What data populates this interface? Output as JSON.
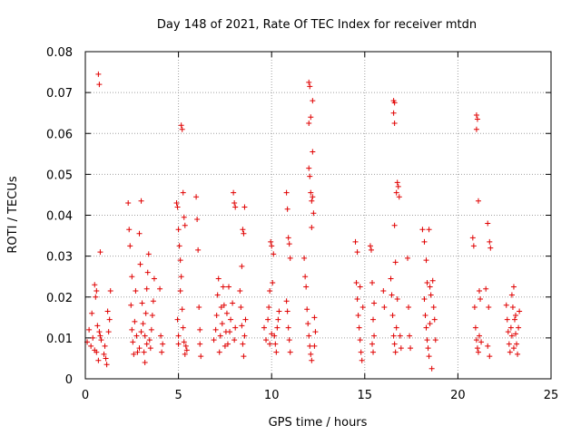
{
  "chart_data": {
    "type": "scatter",
    "title": "Day 148 of 2021, Rate Of TEC Index for receiver mtdn",
    "xlabel": "GPS time / hours",
    "ylabel": "ROTI / TECUs",
    "xlim": [
      0,
      25
    ],
    "ylim": [
      0,
      0.08
    ],
    "x_ticks": [
      "0",
      "5",
      "10",
      "15",
      "20",
      "25"
    ],
    "y_ticks": [
      "0",
      "0.01",
      "0.02",
      "0.03",
      "0.04",
      "0.05",
      "0.06",
      "0.07",
      "0.08"
    ],
    "grid": true,
    "legend": "none",
    "marker": "+",
    "color": "#e00000",
    "series": [
      {
        "values": [
          [
            0.1,
            0.009
          ],
          [
            0.2,
            0.012
          ],
          [
            0.3,
            0.008
          ],
          [
            0.35,
            0.016
          ],
          [
            0.4,
            0.01
          ],
          [
            0.5,
            0.007
          ],
          [
            0.55,
            0.02
          ],
          [
            0.6,
            0.0065
          ],
          [
            0.65,
            0.013
          ],
          [
            0.7,
            0.0045
          ],
          [
            0.75,
            0.0115
          ],
          [
            0.8,
            0.0105
          ],
          [
            0.85,
            0.0095
          ],
          [
            0.7,
            0.0745
          ],
          [
            0.75,
            0.072
          ],
          [
            0.8,
            0.031
          ],
          [
            0.5,
            0.023
          ],
          [
            0.6,
            0.0215
          ],
          [
            1.0,
            0.006
          ],
          [
            1.05,
            0.008
          ],
          [
            1.1,
            0.005
          ],
          [
            1.15,
            0.0035
          ],
          [
            1.2,
            0.0165
          ],
          [
            1.25,
            0.0115
          ],
          [
            1.3,
            0.0145
          ],
          [
            1.35,
            0.0215
          ],
          [
            2.3,
            0.043
          ],
          [
            2.35,
            0.0365
          ],
          [
            2.4,
            0.0325
          ],
          [
            2.5,
            0.025
          ],
          [
            2.45,
            0.018
          ],
          [
            2.5,
            0.012
          ],
          [
            2.55,
            0.009
          ],
          [
            2.6,
            0.006
          ],
          [
            2.65,
            0.014
          ],
          [
            2.7,
            0.0215
          ],
          [
            2.75,
            0.0105
          ],
          [
            2.8,
            0.0065
          ],
          [
            2.9,
            0.0355
          ],
          [
            2.95,
            0.028
          ],
          [
            3.0,
            0.0435
          ],
          [
            3.05,
            0.0185
          ],
          [
            3.1,
            0.0135
          ],
          [
            3.15,
            0.0065
          ],
          [
            3.2,
            0.004
          ],
          [
            3.25,
            0.016
          ],
          [
            3.3,
            0.022
          ],
          [
            3.35,
            0.026
          ],
          [
            3.4,
            0.0305
          ],
          [
            3.45,
            0.0095
          ],
          [
            3.5,
            0.0075
          ],
          [
            3.55,
            0.012
          ],
          [
            3.6,
            0.0155
          ],
          [
            3.65,
            0.019
          ],
          [
            3.7,
            0.0245
          ],
          [
            3.3,
            0.0085
          ],
          [
            3.2,
            0.0105
          ],
          [
            3.0,
            0.0115
          ],
          [
            2.9,
            0.0075
          ],
          [
            4.0,
            0.022
          ],
          [
            4.05,
            0.0105
          ],
          [
            4.1,
            0.0065
          ],
          [
            4.15,
            0.0085
          ],
          [
            4.9,
            0.043
          ],
          [
            4.95,
            0.042
          ],
          [
            5.0,
            0.0365
          ],
          [
            5.05,
            0.0325
          ],
          [
            5.1,
            0.029
          ],
          [
            5.15,
            0.025
          ],
          [
            5.2,
            0.017
          ],
          [
            5.25,
            0.0125
          ],
          [
            5.3,
            0.009
          ],
          [
            5.35,
            0.006
          ],
          [
            5.0,
            0.0105
          ],
          [
            4.95,
            0.0145
          ],
          [
            5.1,
            0.0215
          ],
          [
            5.15,
            0.062
          ],
          [
            5.2,
            0.061
          ],
          [
            5.25,
            0.0455
          ],
          [
            5.3,
            0.0395
          ],
          [
            5.35,
            0.0375
          ],
          [
            5.4,
            0.008
          ],
          [
            5.45,
            0.007
          ],
          [
            5.0,
            0.0085
          ],
          [
            5.95,
            0.0445
          ],
          [
            6.0,
            0.039
          ],
          [
            6.05,
            0.0315
          ],
          [
            6.1,
            0.0175
          ],
          [
            6.15,
            0.0085
          ],
          [
            6.2,
            0.0055
          ],
          [
            6.15,
            0.012
          ],
          [
            6.9,
            0.0095
          ],
          [
            7.0,
            0.012
          ],
          [
            7.05,
            0.0155
          ],
          [
            7.1,
            0.0205
          ],
          [
            7.15,
            0.0245
          ],
          [
            7.2,
            0.0065
          ],
          [
            7.25,
            0.0105
          ],
          [
            7.3,
            0.0175
          ],
          [
            7.35,
            0.0135
          ],
          [
            7.4,
            0.0225
          ],
          [
            7.45,
            0.018
          ],
          [
            7.5,
            0.008
          ],
          [
            7.55,
            0.0115
          ],
          [
            7.6,
            0.016
          ],
          [
            7.65,
            0.0085
          ],
          [
            7.7,
            0.0225
          ],
          [
            7.75,
            0.0115
          ],
          [
            7.8,
            0.0145
          ],
          [
            7.9,
            0.0185
          ],
          [
            8.0,
            0.0095
          ],
          [
            8.05,
            0.0125
          ],
          [
            7.95,
            0.0455
          ],
          [
            8.0,
            0.043
          ],
          [
            8.05,
            0.042
          ],
          [
            8.3,
            0.0215
          ],
          [
            8.35,
            0.0175
          ],
          [
            8.4,
            0.013
          ],
          [
            8.45,
            0.0085
          ],
          [
            8.5,
            0.0055
          ],
          [
            8.55,
            0.0105
          ],
          [
            8.45,
            0.0365
          ],
          [
            8.5,
            0.0355
          ],
          [
            8.55,
            0.042
          ],
          [
            8.4,
            0.0275
          ],
          [
            8.6,
            0.0145
          ],
          [
            9.6,
            0.0125
          ],
          [
            9.7,
            0.0095
          ],
          [
            9.8,
            0.0145
          ],
          [
            9.85,
            0.0175
          ],
          [
            9.9,
            0.0215
          ],
          [
            9.95,
            0.0335
          ],
          [
            10.0,
            0.0325
          ],
          [
            10.05,
            0.0235
          ],
          [
            10.1,
            0.0305
          ],
          [
            10.15,
            0.0105
          ],
          [
            10.2,
            0.0085
          ],
          [
            10.25,
            0.0065
          ],
          [
            10.3,
            0.0125
          ],
          [
            10.35,
            0.0145
          ],
          [
            10.4,
            0.0165
          ],
          [
            10.0,
            0.011
          ],
          [
            9.9,
            0.0085
          ],
          [
            10.8,
            0.0455
          ],
          [
            10.85,
            0.0415
          ],
          [
            10.9,
            0.0345
          ],
          [
            10.95,
            0.033
          ],
          [
            11.0,
            0.0295
          ],
          [
            10.8,
            0.019
          ],
          [
            10.85,
            0.0165
          ],
          [
            10.9,
            0.0125
          ],
          [
            10.95,
            0.0095
          ],
          [
            11.0,
            0.0065
          ],
          [
            11.75,
            0.0295
          ],
          [
            11.8,
            0.025
          ],
          [
            11.85,
            0.0225
          ],
          [
            11.9,
            0.017
          ],
          [
            11.95,
            0.0135
          ],
          [
            12.0,
            0.0105
          ],
          [
            12.05,
            0.008
          ],
          [
            12.1,
            0.006
          ],
          [
            12.15,
            0.0045
          ],
          [
            12.0,
            0.0725
          ],
          [
            12.05,
            0.0715
          ],
          [
            12.2,
            0.068
          ],
          [
            12.0,
            0.0625
          ],
          [
            12.1,
            0.064
          ],
          [
            12.2,
            0.0555
          ],
          [
            12.0,
            0.0515
          ],
          [
            12.05,
            0.0495
          ],
          [
            12.1,
            0.0455
          ],
          [
            12.15,
            0.0435
          ],
          [
            12.2,
            0.0445
          ],
          [
            12.25,
            0.0405
          ],
          [
            12.15,
            0.037
          ],
          [
            12.3,
            0.015
          ],
          [
            12.35,
            0.0115
          ],
          [
            12.3,
            0.008
          ],
          [
            14.5,
            0.0335
          ],
          [
            14.6,
            0.031
          ],
          [
            14.55,
            0.0235
          ],
          [
            14.6,
            0.0195
          ],
          [
            14.65,
            0.0155
          ],
          [
            14.7,
            0.0125
          ],
          [
            14.75,
            0.0095
          ],
          [
            14.8,
            0.0065
          ],
          [
            14.85,
            0.0045
          ],
          [
            14.75,
            0.0225
          ],
          [
            14.9,
            0.0175
          ],
          [
            15.3,
            0.0325
          ],
          [
            15.35,
            0.0315
          ],
          [
            15.4,
            0.0235
          ],
          [
            15.45,
            0.0145
          ],
          [
            15.5,
            0.0105
          ],
          [
            15.4,
            0.0085
          ],
          [
            15.5,
            0.0185
          ],
          [
            15.45,
            0.0065
          ],
          [
            16.0,
            0.0215
          ],
          [
            16.05,
            0.0175
          ],
          [
            16.4,
            0.0245
          ],
          [
            16.45,
            0.0205
          ],
          [
            16.5,
            0.0155
          ],
          [
            16.55,
            0.0105
          ],
          [
            16.6,
            0.0085
          ],
          [
            16.65,
            0.0065
          ],
          [
            16.7,
            0.0125
          ],
          [
            16.6,
            0.0375
          ],
          [
            16.65,
            0.0285
          ],
          [
            16.55,
            0.068
          ],
          [
            16.6,
            0.0675
          ],
          [
            16.55,
            0.065
          ],
          [
            16.6,
            0.0625
          ],
          [
            16.7,
            0.0455
          ],
          [
            16.75,
            0.048
          ],
          [
            16.8,
            0.047
          ],
          [
            16.85,
            0.0445
          ],
          [
            16.75,
            0.0195
          ],
          [
            16.9,
            0.0105
          ],
          [
            16.95,
            0.0075
          ],
          [
            17.3,
            0.0295
          ],
          [
            17.35,
            0.0175
          ],
          [
            17.4,
            0.0105
          ],
          [
            17.45,
            0.0075
          ],
          [
            18.1,
            0.0365
          ],
          [
            18.2,
            0.0335
          ],
          [
            18.3,
            0.029
          ],
          [
            18.35,
            0.0235
          ],
          [
            18.2,
            0.0195
          ],
          [
            18.25,
            0.0155
          ],
          [
            18.3,
            0.0125
          ],
          [
            18.35,
            0.0095
          ],
          [
            18.4,
            0.0075
          ],
          [
            18.45,
            0.0055
          ],
          [
            18.5,
            0.0135
          ],
          [
            18.55,
            0.0205
          ],
          [
            18.6,
            0.0025
          ],
          [
            18.65,
            0.024
          ],
          [
            18.7,
            0.0175
          ],
          [
            18.75,
            0.0145
          ],
          [
            18.8,
            0.0095
          ],
          [
            18.45,
            0.0365
          ],
          [
            18.5,
            0.0225
          ],
          [
            20.8,
            0.0345
          ],
          [
            20.85,
            0.0325
          ],
          [
            20.9,
            0.0175
          ],
          [
            20.95,
            0.0125
          ],
          [
            21.0,
            0.0095
          ],
          [
            21.05,
            0.0075
          ],
          [
            21.1,
            0.0065
          ],
          [
            21.15,
            0.0105
          ],
          [
            21.0,
            0.0645
          ],
          [
            21.05,
            0.0635
          ],
          [
            21.0,
            0.061
          ],
          [
            21.1,
            0.0435
          ],
          [
            21.15,
            0.0215
          ],
          [
            21.2,
            0.0195
          ],
          [
            21.25,
            0.009
          ],
          [
            21.6,
            0.038
          ],
          [
            21.7,
            0.0335
          ],
          [
            21.75,
            0.032
          ],
          [
            21.5,
            0.022
          ],
          [
            21.65,
            0.0175
          ],
          [
            21.6,
            0.008
          ],
          [
            21.7,
            0.0055
          ],
          [
            22.6,
            0.018
          ],
          [
            22.65,
            0.0145
          ],
          [
            22.7,
            0.0115
          ],
          [
            22.75,
            0.0085
          ],
          [
            22.8,
            0.0065
          ],
          [
            22.85,
            0.0125
          ],
          [
            22.9,
            0.0205
          ],
          [
            22.95,
            0.0175
          ],
          [
            23.0,
            0.0225
          ],
          [
            23.05,
            0.0145
          ],
          [
            23.1,
            0.011
          ],
          [
            23.15,
            0.0085
          ],
          [
            23.2,
            0.006
          ],
          [
            23.25,
            0.0125
          ],
          [
            23.3,
            0.0165
          ],
          [
            22.9,
            0.0105
          ],
          [
            23.0,
            0.0075
          ],
          [
            23.1,
            0.0155
          ]
        ]
      }
    ]
  }
}
